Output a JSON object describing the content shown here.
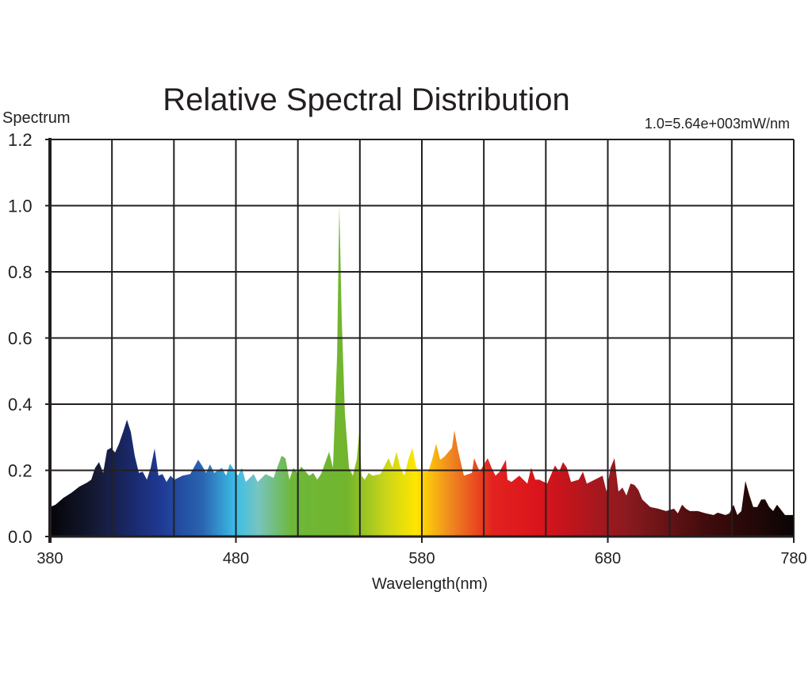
{
  "chart_data": {
    "type": "area",
    "title": "Relative Spectral Distribution",
    "ylabel": "Spectrum",
    "xlabel": "Wavelength(nm)",
    "annotation": "1.0=5.64e+003mW/nm",
    "xlim": [
      380,
      780
    ],
    "ylim": [
      0,
      1.2
    ],
    "x_ticks": [
      380,
      480,
      580,
      680,
      780
    ],
    "x_tick_labels": [
      "380",
      "480",
      "580",
      "680",
      "780"
    ],
    "x_grid_step": 33.333,
    "y_ticks": [
      0,
      0.2,
      0.4,
      0.6,
      0.8,
      1.0,
      1.2
    ],
    "y_tick_labels": [
      "0.0",
      "0.2",
      "0.4",
      "0.6",
      "0.8",
      "1.0",
      "1.2"
    ],
    "grid": true,
    "fill": "visible-spectrum gradient",
    "gradient_stops": [
      {
        "wl": 380,
        "color": "#050508"
      },
      {
        "wl": 405,
        "color": "#151a35"
      },
      {
        "wl": 425,
        "color": "#1a2a6e"
      },
      {
        "wl": 440,
        "color": "#1f3a95"
      },
      {
        "wl": 462,
        "color": "#2a64b0"
      },
      {
        "wl": 480,
        "color": "#3cbfe8"
      },
      {
        "wl": 492,
        "color": "#78c4c0"
      },
      {
        "wl": 510,
        "color": "#6db83a"
      },
      {
        "wl": 540,
        "color": "#72b52c"
      },
      {
        "wl": 560,
        "color": "#c8d51a"
      },
      {
        "wl": 577,
        "color": "#ffe600"
      },
      {
        "wl": 595,
        "color": "#f08a20"
      },
      {
        "wl": 618,
        "color": "#e3221f"
      },
      {
        "wl": 645,
        "color": "#d9131b"
      },
      {
        "wl": 690,
        "color": "#8b1a1f"
      },
      {
        "wl": 735,
        "color": "#3e0b0b"
      },
      {
        "wl": 780,
        "color": "#0a0505"
      }
    ],
    "x": [
      380,
      383,
      387.2,
      391.5,
      395.8,
      400,
      402.2,
      404.3,
      406.4,
      408.6,
      410.7,
      412.8,
      415,
      417.1,
      419.3,
      421.4,
      423.5,
      425.6,
      427.8,
      429.9,
      432.1,
      434.2,
      436.3,
      438.4,
      440.5,
      442.7,
      444.8,
      446.9,
      451.2,
      455.5,
      459.7,
      461.9,
      464,
      466.1,
      468.3,
      472.5,
      474.7,
      476.8,
      481.1,
      483.2,
      485.3,
      489.6,
      491.7,
      496,
      500.2,
      504.5,
      506.6,
      508.8,
      510.9,
      513,
      515.2,
      519.4,
      521.6,
      523.7,
      525.8,
      530.1,
      532.2,
      534.4,
      535.6,
      536.9,
      538.6,
      540.8,
      542.9,
      545,
      546.3,
      547.6,
      549.3,
      551.4,
      553.5,
      557.8,
      562.1,
      564.2,
      566.3,
      568.5,
      570.6,
      572.7,
      574.9,
      577,
      579.1,
      583.4,
      585.5,
      587.7,
      589.8,
      591.9,
      596.2,
      597.5,
      599.6,
      602.6,
      606.9,
      608.1,
      611.1,
      615.4,
      617.5,
      619.6,
      621.8,
      625.2,
      626,
      628.2,
      632.4,
      636.7,
      638.8,
      641,
      643.1,
      647.4,
      651.6,
      653.8,
      655.9,
      658,
      660.2,
      664.4,
      666.6,
      668.7,
      673,
      677.2,
      679.3,
      681.5,
      683.6,
      685.7,
      687.9,
      690,
      692.2,
      694.3,
      696.4,
      698.5,
      702.8,
      707.1,
      711.3,
      715.6,
      717.7,
      719.9,
      722,
      724.1,
      728.4,
      732.7,
      736.9,
      739.1,
      743.3,
      745.4,
      747.6,
      749.7,
      751.8,
      754,
      756.1,
      758.2,
      760.4,
      762.5,
      764.6,
      766.8,
      768.9,
      771,
      775.3,
      780
    ],
    "y": [
      0.089,
      0.096,
      0.117,
      0.132,
      0.151,
      0.163,
      0.172,
      0.208,
      0.225,
      0.192,
      0.261,
      0.268,
      0.254,
      0.28,
      0.316,
      0.353,
      0.316,
      0.244,
      0.192,
      0.196,
      0.172,
      0.208,
      0.266,
      0.184,
      0.189,
      0.165,
      0.184,
      0.172,
      0.184,
      0.189,
      0.232,
      0.213,
      0.192,
      0.218,
      0.192,
      0.208,
      0.184,
      0.22,
      0.184,
      0.208,
      0.165,
      0.189,
      0.165,
      0.189,
      0.177,
      0.244,
      0.237,
      0.172,
      0.208,
      0.192,
      0.211,
      0.184,
      0.192,
      0.172,
      0.189,
      0.256,
      0.208,
      0.546,
      1.0,
      0.663,
      0.376,
      0.208,
      0.184,
      0.232,
      0.316,
      0.184,
      0.172,
      0.192,
      0.184,
      0.189,
      0.237,
      0.208,
      0.256,
      0.208,
      0.184,
      0.232,
      0.268,
      0.208,
      0.196,
      0.196,
      0.232,
      0.28,
      0.232,
      0.24,
      0.268,
      0.321,
      0.256,
      0.184,
      0.192,
      0.237,
      0.196,
      0.237,
      0.208,
      0.184,
      0.196,
      0.232,
      0.172,
      0.165,
      0.184,
      0.16,
      0.208,
      0.172,
      0.172,
      0.16,
      0.215,
      0.196,
      0.225,
      0.208,
      0.165,
      0.172,
      0.196,
      0.16,
      0.172,
      0.184,
      0.136,
      0.208,
      0.237,
      0.136,
      0.148,
      0.124,
      0.16,
      0.156,
      0.141,
      0.112,
      0.089,
      0.084,
      0.077,
      0.084,
      0.07,
      0.096,
      0.084,
      0.077,
      0.077,
      0.07,
      0.065,
      0.072,
      0.065,
      0.07,
      0.096,
      0.065,
      0.077,
      0.168,
      0.125,
      0.089,
      0.089,
      0.112,
      0.112,
      0.089,
      0.077,
      0.096,
      0.065,
      0.065
    ]
  }
}
